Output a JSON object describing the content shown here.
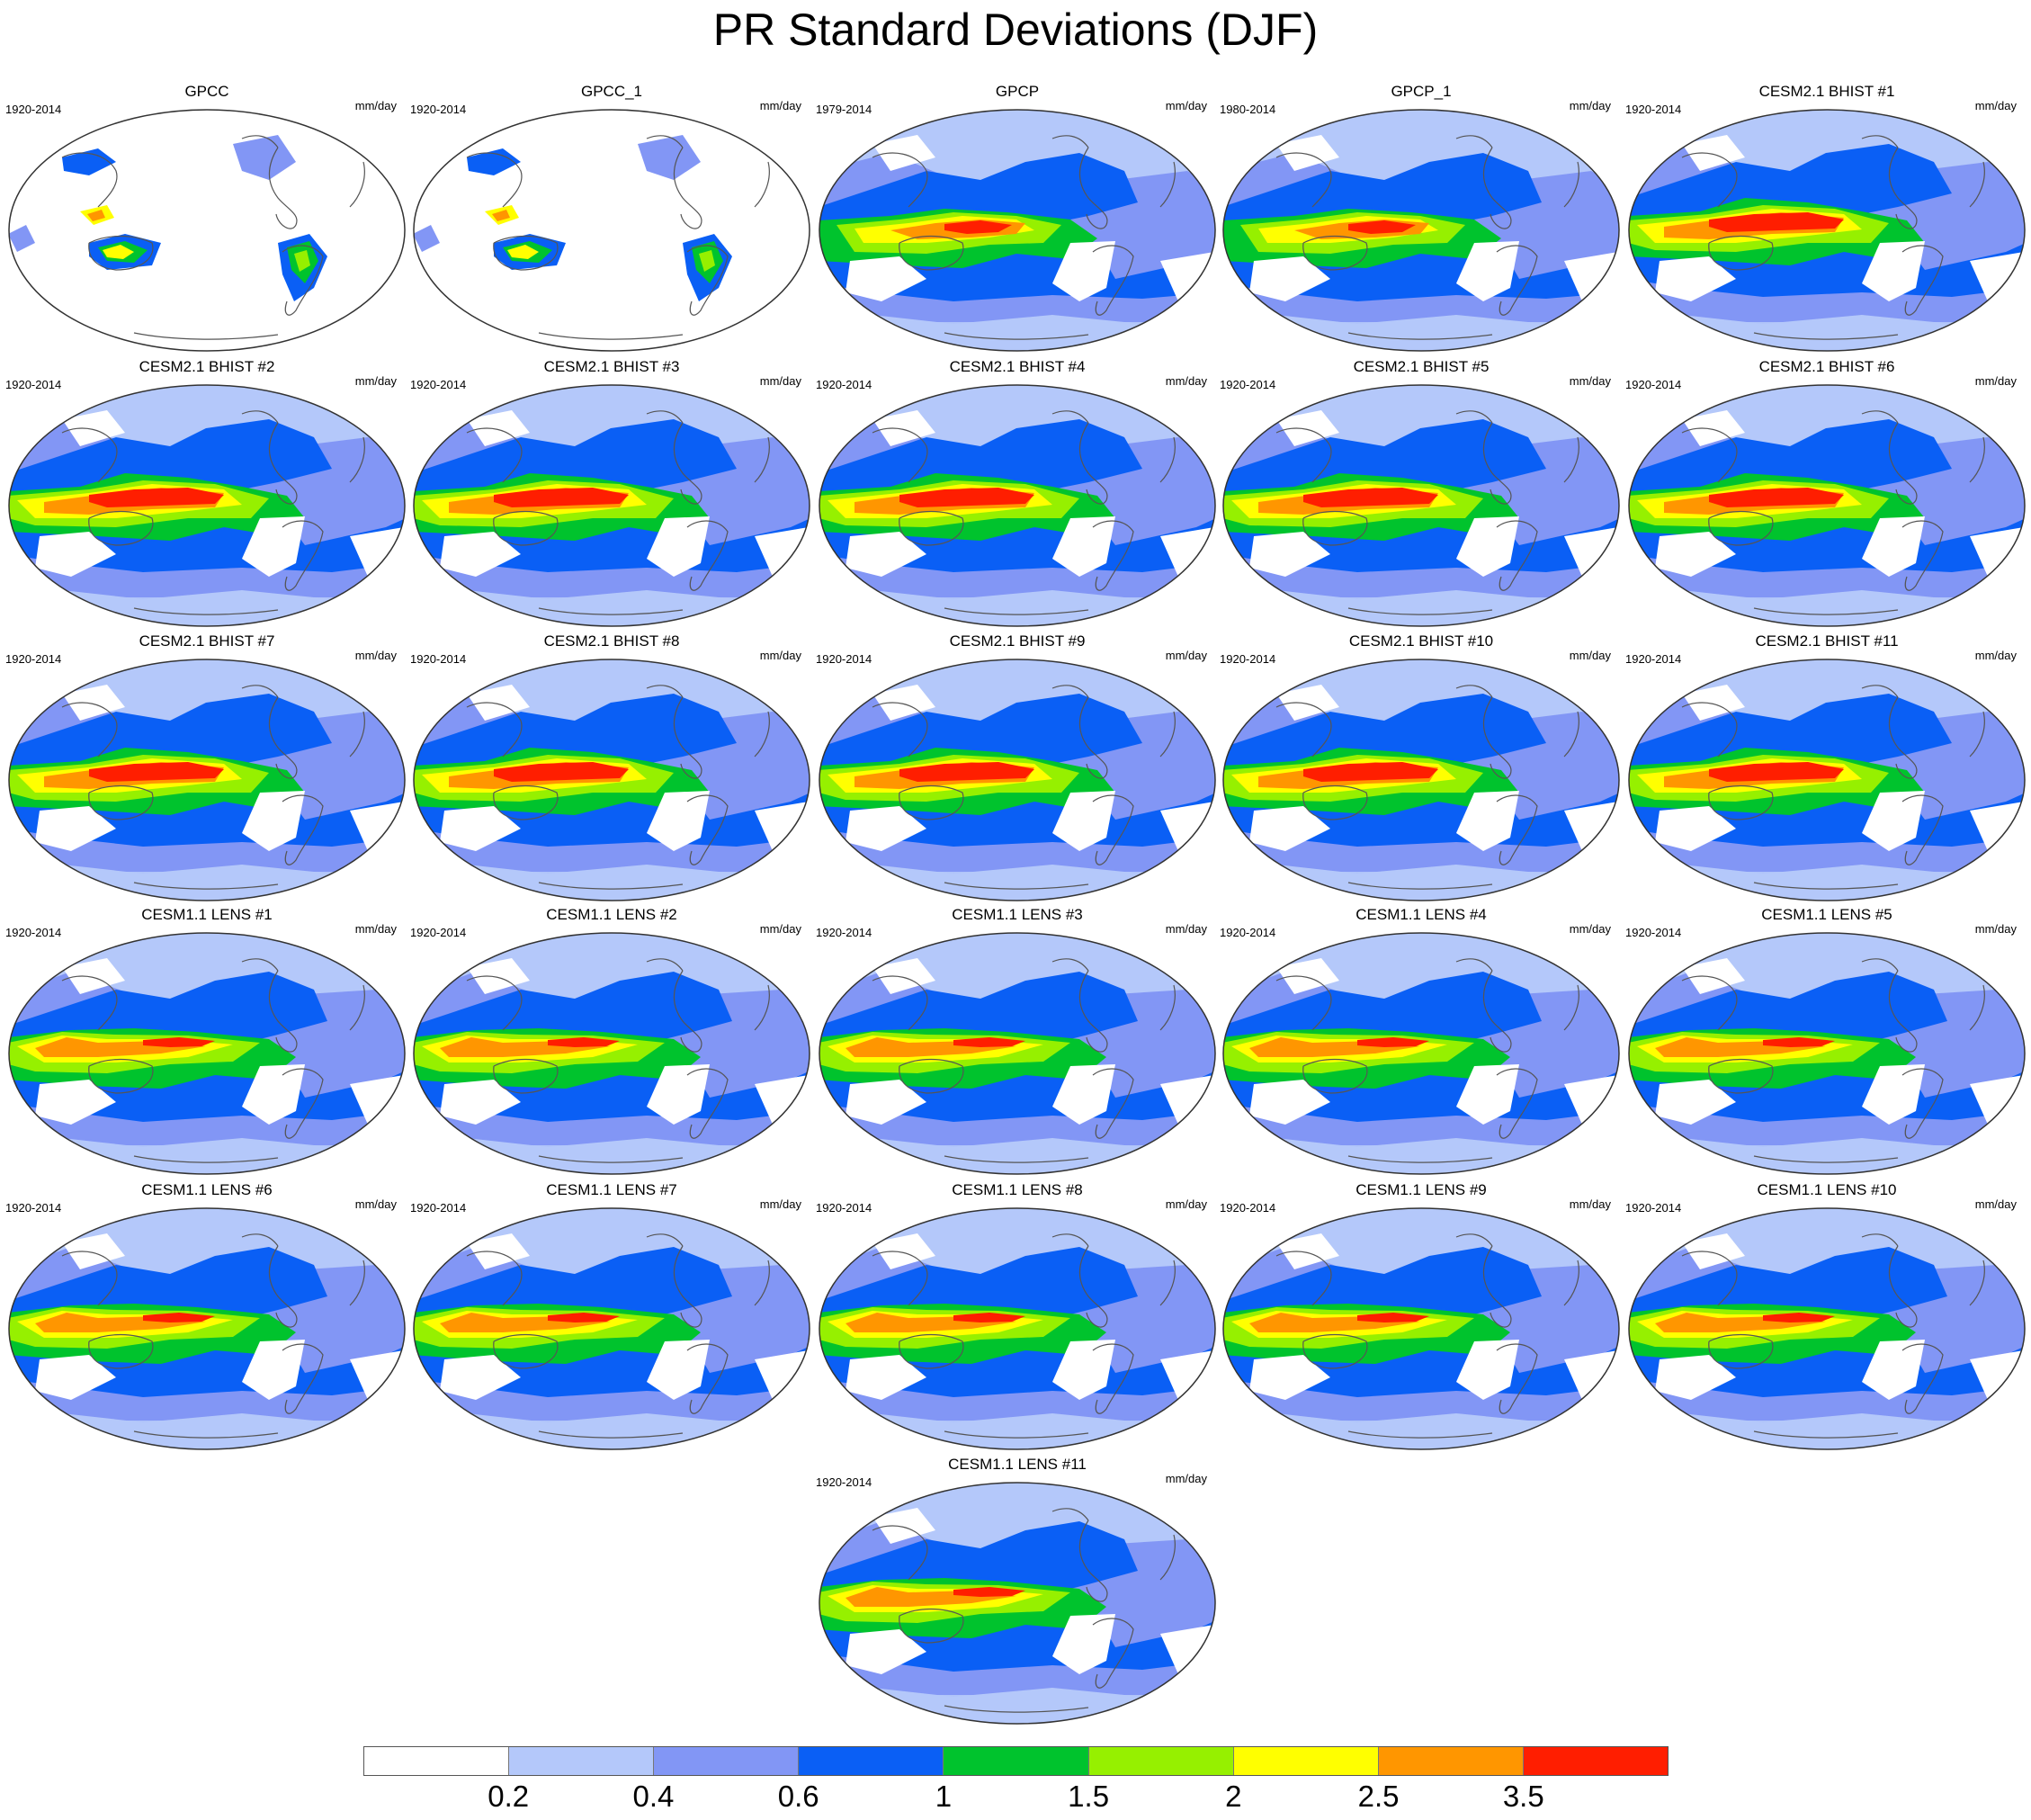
{
  "figure": {
    "title": "PR Standard Deviations (DJF)"
  },
  "colorbar": {
    "colors": [
      "#ffffff",
      "#b4c8fa",
      "#8296f5",
      "#0a5ff5",
      "#00c32d",
      "#96f000",
      "#ffff00",
      "#ff9600",
      "#ff1e00"
    ],
    "labels": [
      "0.2",
      "0.4",
      "0.6",
      "1",
      "1.5",
      "2",
      "2.5",
      "3.5"
    ]
  },
  "panels": [
    {
      "title": "GPCC",
      "period": "1920-2014",
      "units": "mm/day",
      "kind": "land"
    },
    {
      "title": "GPCC_1",
      "period": "1920-2014",
      "units": "mm/day",
      "kind": "land"
    },
    {
      "title": "GPCP",
      "period": "1979-2014",
      "units": "mm/day",
      "kind": "obs"
    },
    {
      "title": "GPCP_1",
      "period": "1980-2014",
      "units": "mm/day",
      "kind": "obs"
    },
    {
      "title": "CESM2.1 BHIST #1",
      "period": "1920-2014",
      "units": "mm/day",
      "kind": "cesm2"
    },
    {
      "title": "CESM2.1 BHIST #2",
      "period": "1920-2014",
      "units": "mm/day",
      "kind": "cesm2"
    },
    {
      "title": "CESM2.1 BHIST #3",
      "period": "1920-2014",
      "units": "mm/day",
      "kind": "cesm2"
    },
    {
      "title": "CESM2.1 BHIST #4",
      "period": "1920-2014",
      "units": "mm/day",
      "kind": "cesm2"
    },
    {
      "title": "CESM2.1 BHIST #5",
      "period": "1920-2014",
      "units": "mm/day",
      "kind": "cesm2"
    },
    {
      "title": "CESM2.1 BHIST #6",
      "period": "1920-2014",
      "units": "mm/day",
      "kind": "cesm2"
    },
    {
      "title": "CESM2.1 BHIST #7",
      "period": "1920-2014",
      "units": "mm/day",
      "kind": "cesm2"
    },
    {
      "title": "CESM2.1 BHIST #8",
      "period": "1920-2014",
      "units": "mm/day",
      "kind": "cesm2"
    },
    {
      "title": "CESM2.1 BHIST #9",
      "period": "1920-2014",
      "units": "mm/day",
      "kind": "cesm2"
    },
    {
      "title": "CESM2.1 BHIST #10",
      "period": "1920-2014",
      "units": "mm/day",
      "kind": "cesm2"
    },
    {
      "title": "CESM2.1 BHIST #11",
      "period": "1920-2014",
      "units": "mm/day",
      "kind": "cesm2"
    },
    {
      "title": "CESM1.1 LENS #1",
      "period": "1920-2014",
      "units": "mm/day",
      "kind": "cesm1"
    },
    {
      "title": "CESM1.1 LENS #2",
      "period": "1920-2014",
      "units": "mm/day",
      "kind": "cesm1"
    },
    {
      "title": "CESM1.1 LENS #3",
      "period": "1920-2014",
      "units": "mm/day",
      "kind": "cesm1"
    },
    {
      "title": "CESM1.1 LENS #4",
      "period": "1920-2014",
      "units": "mm/day",
      "kind": "cesm1"
    },
    {
      "title": "CESM1.1 LENS #5",
      "period": "1920-2014",
      "units": "mm/day",
      "kind": "cesm1"
    },
    {
      "title": "CESM1.1 LENS #6",
      "period": "1920-2014",
      "units": "mm/day",
      "kind": "cesm1"
    },
    {
      "title": "CESM1.1 LENS #7",
      "period": "1920-2014",
      "units": "mm/day",
      "kind": "cesm1"
    },
    {
      "title": "CESM1.1 LENS #8",
      "period": "1920-2014",
      "units": "mm/day",
      "kind": "cesm1"
    },
    {
      "title": "CESM1.1 LENS #9",
      "period": "1920-2014",
      "units": "mm/day",
      "kind": "cesm1"
    },
    {
      "title": "CESM1.1 LENS #10",
      "period": "1920-2014",
      "units": "mm/day",
      "kind": "cesm1"
    },
    {
      "title": "CESM1.1 LENS #11",
      "period": "1920-2014",
      "units": "mm/day",
      "kind": "cesm1"
    }
  ]
}
